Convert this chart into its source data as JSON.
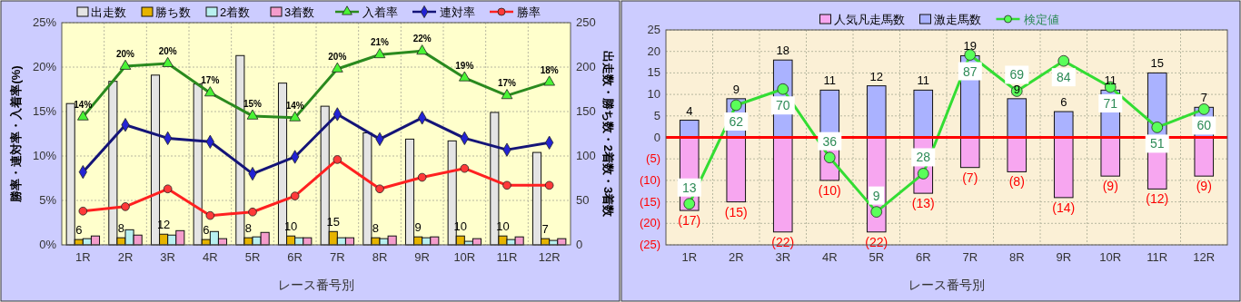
{
  "chart_data": [
    {
      "type": "bar",
      "categories": [
        "1R",
        "2R",
        "3R",
        "4R",
        "5R",
        "6R",
        "7R",
        "8R",
        "9R",
        "10R",
        "11R",
        "12R"
      ],
      "xlabel": "レース番号別",
      "ylabel": "勝率・連対率・入着率(%)",
      "y2label": "出走数・勝ち数・2着数・3着数",
      "ylim": [
        0,
        25
      ],
      "yticks": [
        {
          "value": 0,
          "label": "0%"
        },
        {
          "value": 5,
          "label": "5%"
        },
        {
          "value": 10,
          "label": "10%"
        },
        {
          "value": 15,
          "label": "15%"
        },
        {
          "value": 20,
          "label": "20%"
        },
        {
          "value": 25,
          "label": "25%"
        }
      ],
      "y2lim": [
        0,
        250
      ],
      "y2ticks": [
        0,
        50,
        100,
        150,
        200,
        250
      ],
      "grid": true,
      "legend": "top",
      "series": [
        {
          "name": "出走数",
          "type": "bar",
          "axis": "y2",
          "color": "#e4e4e4",
          "values": [
            159,
            184,
            191,
            181,
            213,
            182,
            156,
            126,
            119,
            117,
            149,
            104
          ]
        },
        {
          "name": "勝ち数",
          "type": "bar",
          "axis": "y2",
          "color": "#e6b400",
          "values": [
            6,
            8,
            12,
            6,
            8,
            10,
            15,
            8,
            9,
            10,
            10,
            7
          ],
          "value_labels": [
            "6",
            "8",
            "12",
            "6",
            "8",
            "10",
            "15",
            "8",
            "9",
            "10",
            "10",
            "7"
          ]
        },
        {
          "name": "2着数",
          "type": "bar",
          "axis": "y2",
          "color": "#b8f0f0",
          "values": [
            7,
            17,
            11,
            15,
            9,
            8,
            8,
            7,
            8,
            4,
            6,
            5
          ]
        },
        {
          "name": "3着数",
          "type": "bar",
          "axis": "y2",
          "color": "#f49ccc",
          "values": [
            10,
            11,
            16,
            7,
            14,
            8,
            8,
            10,
            9,
            7,
            9,
            7
          ]
        },
        {
          "name": "入着率",
          "type": "line",
          "axis": "y",
          "marker": "triangle",
          "color": "#2a8a1e",
          "values": [
            14.4,
            20.1,
            20.4,
            17.1,
            14.5,
            14.3,
            19.8,
            21.4,
            21.8,
            18.8,
            16.8,
            18.3
          ],
          "value_labels": [
            "14%",
            "20%",
            "20%",
            "17%",
            "15%",
            "14%",
            "20%",
            "21%",
            "22%",
            "19%",
            "17%",
            "18%"
          ]
        },
        {
          "name": "連対率",
          "type": "line",
          "axis": "y",
          "marker": "diamond",
          "color": "#141478",
          "values": [
            8.2,
            13.5,
            12.0,
            11.6,
            8.0,
            9.9,
            14.7,
            11.9,
            14.3,
            12.0,
            10.7,
            11.5
          ]
        },
        {
          "name": "勝率",
          "type": "line",
          "axis": "y",
          "marker": "circle",
          "color": "#ff2020",
          "values": [
            3.8,
            4.3,
            6.3,
            3.3,
            3.7,
            5.5,
            9.6,
            6.3,
            7.6,
            8.6,
            6.7,
            6.7
          ]
        }
      ]
    },
    {
      "type": "bar",
      "stacked": true,
      "categories": [
        "1R",
        "2R",
        "3R",
        "4R",
        "5R",
        "6R",
        "7R",
        "8R",
        "9R",
        "10R",
        "11R",
        "12R"
      ],
      "xlabel": "レース番号別",
      "ylim": [
        -25,
        25
      ],
      "yticks": [
        {
          "value": -25,
          "label": "(25)"
        },
        {
          "value": -20,
          "label": "(20)"
        },
        {
          "value": -15,
          "label": "(15)"
        },
        {
          "value": -10,
          "label": "(10)"
        },
        {
          "value": -5,
          "label": "(5)"
        },
        0,
        5,
        10,
        15,
        20,
        25
      ],
      "y2lim": [
        -7.4,
        99.4
      ],
      "grid": true,
      "legend": "top",
      "ref_lines": [
        {
          "axis": "y",
          "value": 0,
          "color": "#ff0000"
        }
      ],
      "series": [
        {
          "name": "人気凡走馬数",
          "type": "bar",
          "color": "#f7a6f0",
          "values": [
            -17,
            -15,
            -22,
            -10,
            -22,
            -13,
            -7,
            -8,
            -14,
            -9,
            -12,
            -9
          ],
          "value_labels": [
            "(17)",
            "(15)",
            "(22)",
            "(10)",
            "(22)",
            "(13)",
            "(7)",
            "(8)",
            "(14)",
            "(9)",
            "(12)",
            "(9)"
          ]
        },
        {
          "name": "激走馬数",
          "type": "bar",
          "color": "#aab2ff",
          "values": [
            4,
            9,
            18,
            11,
            12,
            11,
            19,
            9,
            6,
            11,
            15,
            7
          ],
          "data_labels": true
        },
        {
          "name": "検定値",
          "type": "line",
          "axis": "y2",
          "marker": "circle",
          "color": "#33dd33",
          "values": [
            13,
            62,
            70,
            36,
            9,
            28,
            87,
            69,
            84,
            71,
            51,
            60
          ],
          "data_labels": true
        }
      ]
    }
  ]
}
